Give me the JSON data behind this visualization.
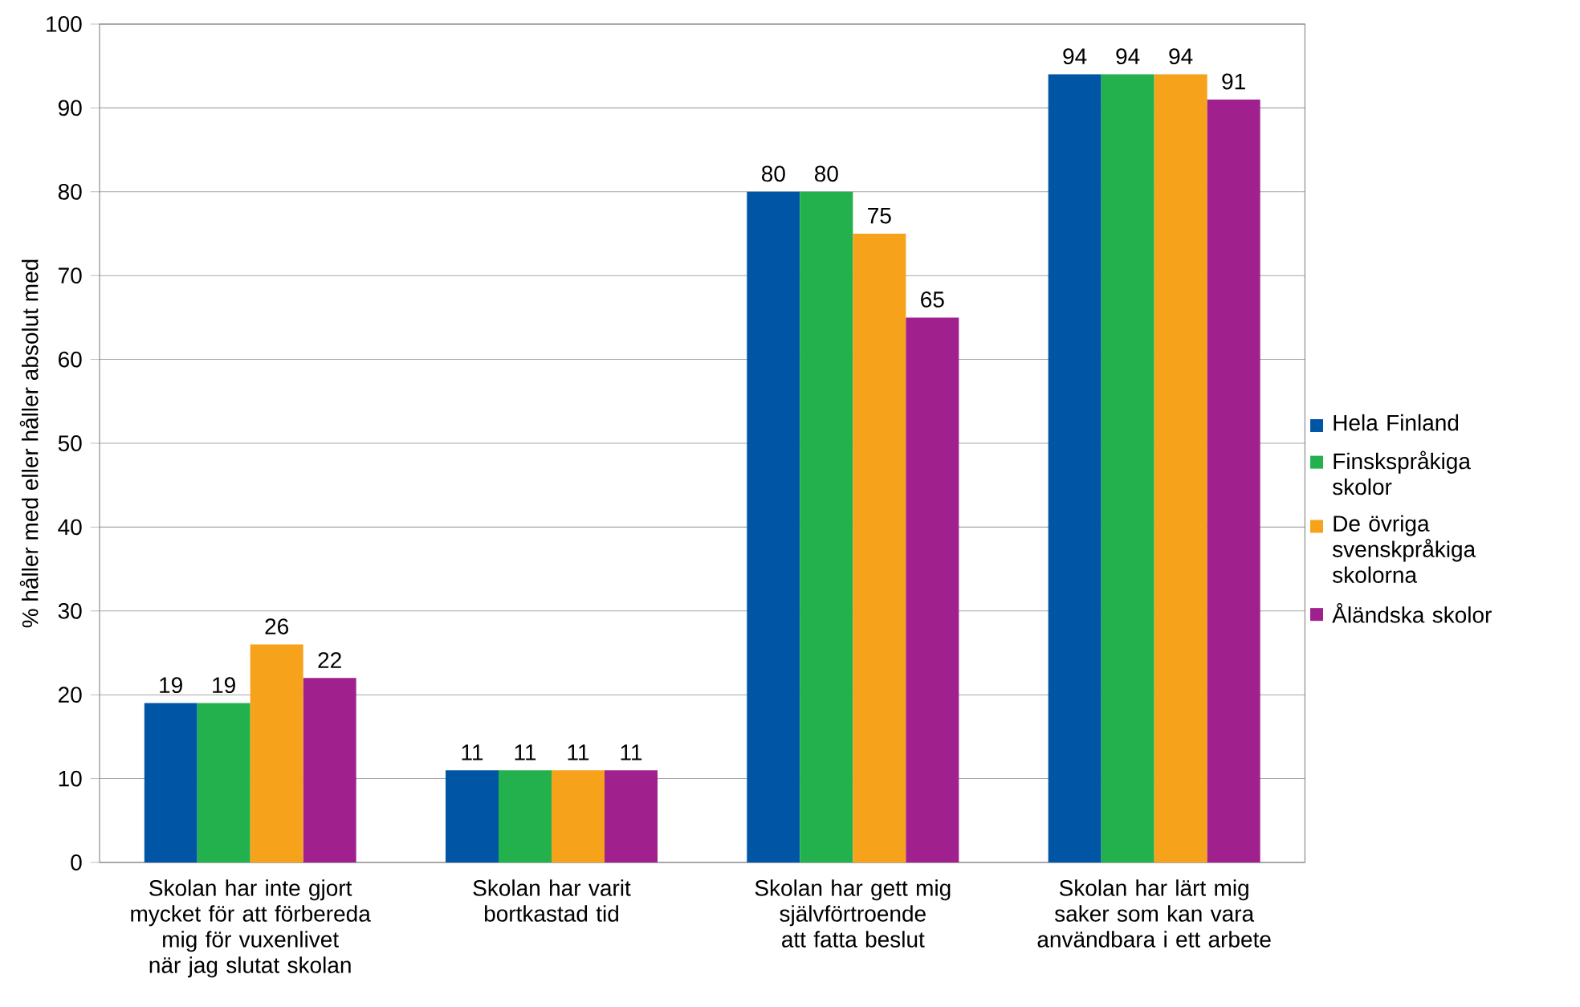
{
  "chart_data": {
    "type": "bar",
    "ylabel": "% håller med eller håller absolut med",
    "categories": [
      "Skolan har inte gjort mycket för att förbereda mig för vuxenlivet när jag slutat skolan",
      "Skolan har varit bortkastad tid",
      "Skolan har gett mig självförtroende att fatta beslut",
      "Skolan har lärt mig saker som kan vara användbara i ett arbete"
    ],
    "series": [
      {
        "name": "Hela Finland",
        "color": "#0055a5",
        "values": [
          19,
          11,
          80,
          94
        ]
      },
      {
        "name": "Finskspråkiga skolor",
        "color": "#22b14c",
        "values": [
          19,
          11,
          80,
          94
        ]
      },
      {
        "name": "De övriga svenskpråkiga skolorna",
        "color": "#f7a21b",
        "values": [
          26,
          11,
          75,
          94
        ]
      },
      {
        "name": "Åländska skolor",
        "color": "#a0218e",
        "values": [
          22,
          11,
          65,
          91
        ]
      }
    ],
    "ylim": [
      0,
      100
    ],
    "yticks": [
      0,
      10,
      20,
      30,
      40,
      50,
      60,
      70,
      80,
      90,
      100
    ],
    "data_labels": true,
    "grid": "y",
    "legend": "right"
  }
}
